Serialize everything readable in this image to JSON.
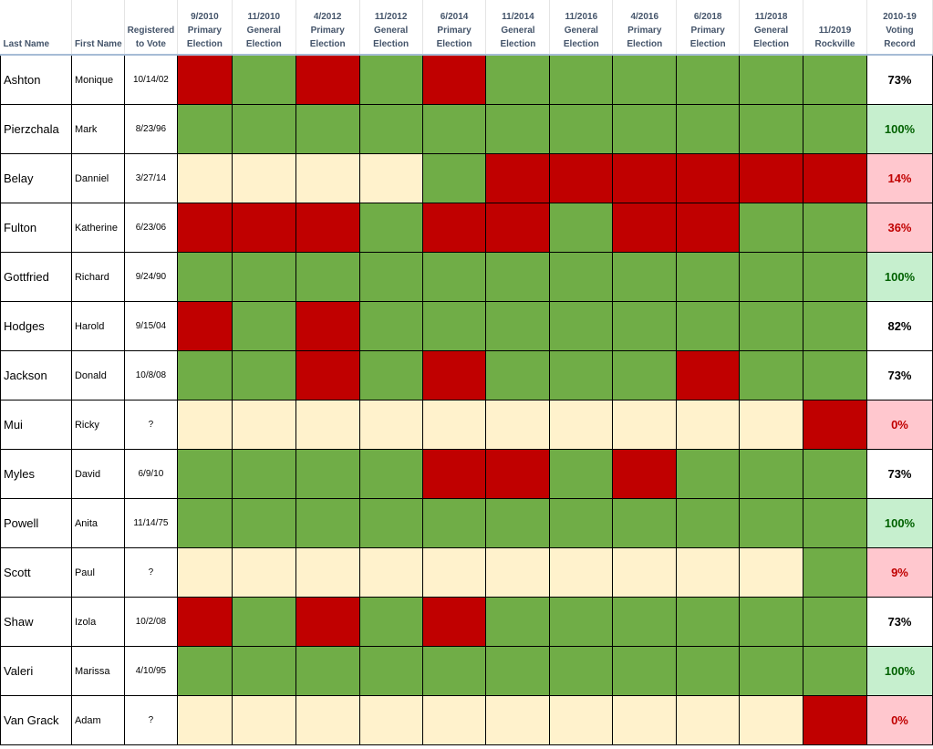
{
  "colors": {
    "voted": "#70ad47",
    "missed": "#c00000",
    "not_registered": "#fff2cc",
    "record_good_bg": "#c6efce",
    "record_good_text": "#006100",
    "record_bad_bg": "#ffc7ce",
    "record_bad_text": "#c00000",
    "header_text": "#44546a"
  },
  "headers": {
    "last_name": "Last Name",
    "first_name": "First Name",
    "registered": "Registered\nto Vote",
    "elections": [
      "9/2010\nPrimary\nElection",
      "11/2010\nGeneral\nElection",
      "4/2012\nPrimary\nElection",
      "11/2012\nGeneral\nElection",
      "6/2014\nPrimary\nElection",
      "11/2014\nGeneral\nElection",
      "11/2016\nGeneral\nElection",
      "4/2016\nPrimary\nElection",
      "6/2018\nPrimary\nElection",
      "11/2018\nGeneral\nElection",
      "11/2019\nRockville"
    ],
    "record": "2010-19\nVoting\nRecord"
  },
  "rows": [
    {
      "last": "Ashton",
      "first": "Monique",
      "registered": "10/14/02",
      "votes": [
        "M",
        "V",
        "M",
        "V",
        "M",
        "V",
        "V",
        "V",
        "V",
        "V",
        "V"
      ],
      "record": "73%",
      "record_style": "plain"
    },
    {
      "last": "Pierzchala",
      "first": "Mark",
      "registered": "8/23/96",
      "votes": [
        "V",
        "V",
        "V",
        "V",
        "V",
        "V",
        "V",
        "V",
        "V",
        "V",
        "V"
      ],
      "record": "100%",
      "record_style": "good"
    },
    {
      "last": "Belay",
      "first": "Danniel",
      "registered": "3/27/14",
      "votes": [
        "N",
        "N",
        "N",
        "N",
        "V",
        "M",
        "M",
        "M",
        "M",
        "M",
        "M"
      ],
      "record": "14%",
      "record_style": "bad"
    },
    {
      "last": "Fulton",
      "first": "Katherine",
      "registered": "6/23/06",
      "votes": [
        "M",
        "M",
        "M",
        "V",
        "M",
        "M",
        "V",
        "M",
        "M",
        "V",
        "V"
      ],
      "record": "36%",
      "record_style": "bad"
    },
    {
      "last": "Gottfried",
      "first": "Richard",
      "registered": "9/24/90",
      "votes": [
        "V",
        "V",
        "V",
        "V",
        "V",
        "V",
        "V",
        "V",
        "V",
        "V",
        "V"
      ],
      "record": "100%",
      "record_style": "good"
    },
    {
      "last": "Hodges",
      "first": "Harold",
      "registered": "9/15/04",
      "votes": [
        "M",
        "V",
        "M",
        "V",
        "V",
        "V",
        "V",
        "V",
        "V",
        "V",
        "V"
      ],
      "record": "82%",
      "record_style": "plain"
    },
    {
      "last": "Jackson",
      "first": "Donald",
      "registered": "10/8/08",
      "votes": [
        "V",
        "V",
        "M",
        "V",
        "M",
        "V",
        "V",
        "V",
        "M",
        "V",
        "V"
      ],
      "record": "73%",
      "record_style": "plain"
    },
    {
      "last": "Mui",
      "first": "Ricky",
      "registered": "?",
      "votes": [
        "N",
        "N",
        "N",
        "N",
        "N",
        "N",
        "N",
        "N",
        "N",
        "N",
        "M"
      ],
      "record": "0%",
      "record_style": "bad"
    },
    {
      "last": "Myles",
      "first": "David",
      "registered": "6/9/10",
      "votes": [
        "V",
        "V",
        "V",
        "V",
        "M",
        "M",
        "V",
        "M",
        "V",
        "V",
        "V"
      ],
      "record": "73%",
      "record_style": "plain"
    },
    {
      "last": "Powell",
      "first": "Anita",
      "registered": "11/14/75",
      "votes": [
        "V",
        "V",
        "V",
        "V",
        "V",
        "V",
        "V",
        "V",
        "V",
        "V",
        "V"
      ],
      "record": "100%",
      "record_style": "good"
    },
    {
      "last": "Scott",
      "first": "Paul",
      "registered": "?",
      "votes": [
        "N",
        "N",
        "N",
        "N",
        "N",
        "N",
        "N",
        "N",
        "N",
        "N",
        "V"
      ],
      "record": "9%",
      "record_style": "bad"
    },
    {
      "last": "Shaw",
      "first": "Izola",
      "registered": "10/2/08",
      "votes": [
        "M",
        "V",
        "M",
        "V",
        "M",
        "V",
        "V",
        "V",
        "V",
        "V",
        "V"
      ],
      "record": "73%",
      "record_style": "plain"
    },
    {
      "last": "Valeri",
      "first": "Marissa",
      "registered": "4/10/95",
      "votes": [
        "V",
        "V",
        "V",
        "V",
        "V",
        "V",
        "V",
        "V",
        "V",
        "V",
        "V"
      ],
      "record": "100%",
      "record_style": "good"
    },
    {
      "last": "Van Grack",
      "first": "Adam",
      "registered": "?",
      "votes": [
        "N",
        "N",
        "N",
        "N",
        "N",
        "N",
        "N",
        "N",
        "N",
        "N",
        "M"
      ],
      "record": "0%",
      "record_style": "bad"
    }
  ]
}
